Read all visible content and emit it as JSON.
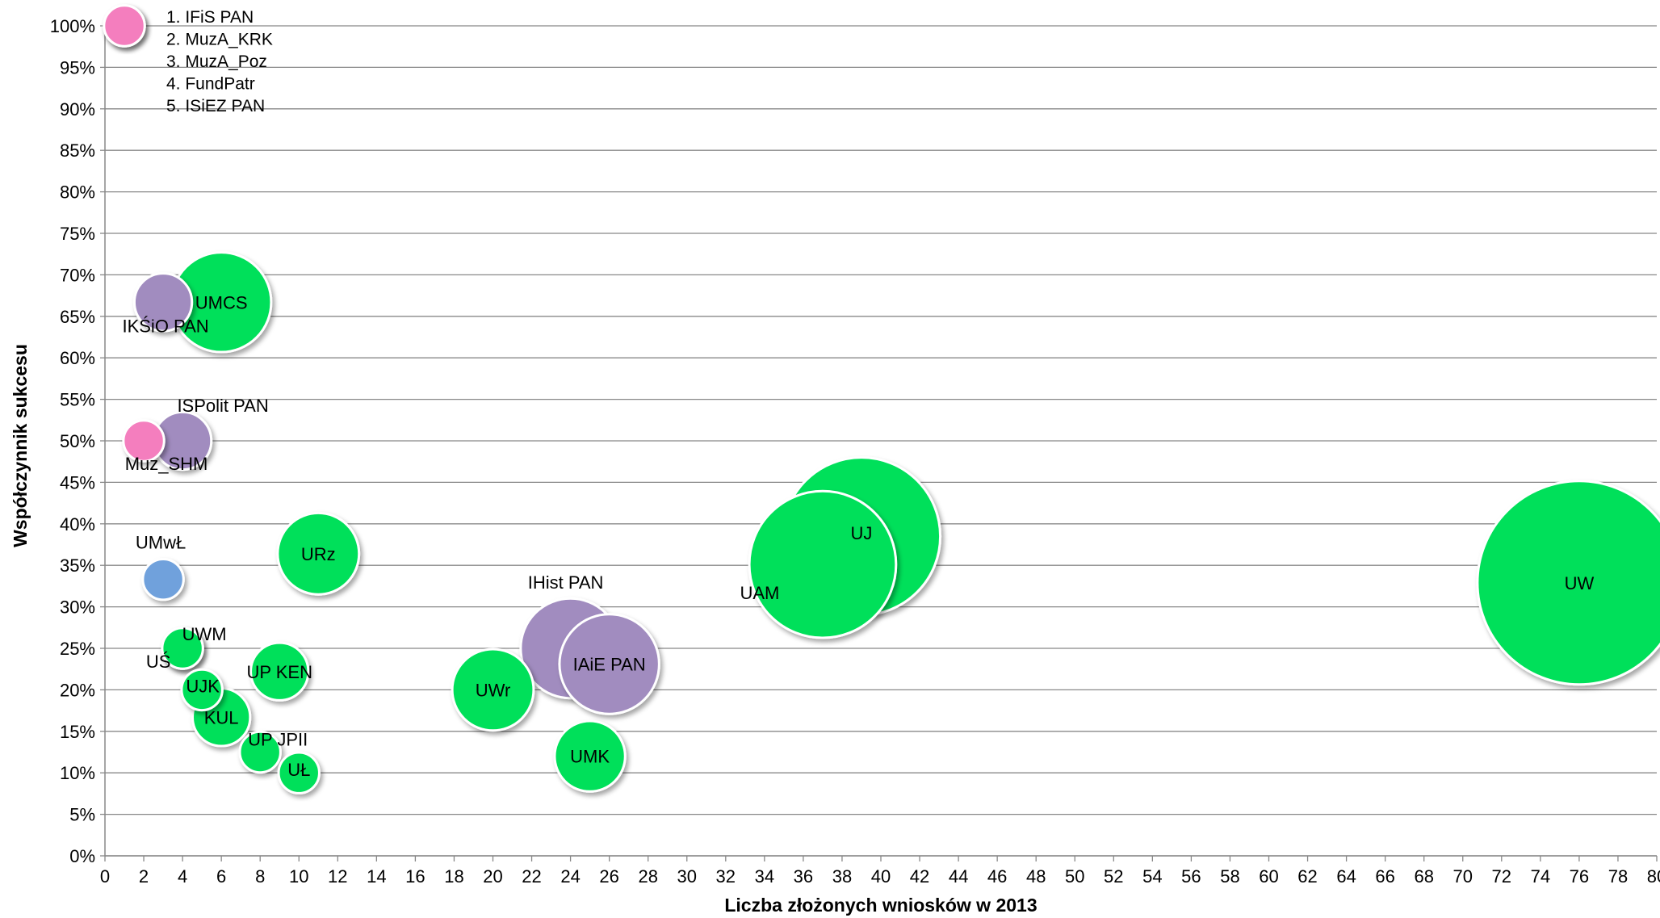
{
  "chart_data": {
    "type": "bubble",
    "xlabel": "Liczba złożonych wniosków w 2013",
    "ylabel": "Współczynnik sukcesu",
    "xlim": [
      0,
      80
    ],
    "ylim": [
      0,
      1
    ],
    "x_ticks": [
      0,
      2,
      4,
      6,
      8,
      10,
      12,
      14,
      16,
      18,
      20,
      22,
      24,
      26,
      28,
      30,
      32,
      34,
      36,
      38,
      40,
      42,
      44,
      46,
      48,
      50,
      52,
      54,
      56,
      58,
      60,
      62,
      64,
      66,
      68,
      70,
      72,
      74,
      76,
      78,
      80
    ],
    "y_ticks": [
      "0%",
      "5%",
      "10%",
      "15%",
      "20%",
      "25%",
      "30%",
      "35%",
      "40%",
      "45%",
      "50%",
      "55%",
      "60%",
      "65%",
      "70%",
      "75%",
      "80%",
      "85%",
      "90%",
      "95%",
      "100%"
    ],
    "grid": "horizontal",
    "colors": {
      "green": "#00E05A",
      "purple": "#A18CBF",
      "pink": "#F47EBE",
      "blue": "#6FA1DC",
      "gridline": "#888888"
    },
    "annotation": [
      "1. IFiS PAN",
      "2. MuzA_KRK",
      "3. MuzA_Poz",
      "4. FundPatr",
      "5. ISiEZ PAN"
    ],
    "points": [
      {
        "label": "",
        "x": 1,
        "y": 1.0,
        "size": 1,
        "color": "purple"
      },
      {
        "label": "",
        "x": 1,
        "y": 1.0,
        "size": 1,
        "color": "pink"
      },
      {
        "label": "UMCS",
        "x": 6,
        "y": 0.667,
        "size": 6,
        "color": "green"
      },
      {
        "label": "IKŚiO PAN",
        "x": 3,
        "y": 0.667,
        "size": 2,
        "color": "purple"
      },
      {
        "label": "ISPolit PAN",
        "x": 4,
        "y": 0.5,
        "size": 2,
        "color": "purple"
      },
      {
        "label": "Muz_SHM",
        "x": 2,
        "y": 0.5,
        "size": 1,
        "color": "pink"
      },
      {
        "label": "UMwŁ",
        "x": 3,
        "y": 0.333,
        "size": 1,
        "color": "blue"
      },
      {
        "label": "URz",
        "x": 11,
        "y": 0.364,
        "size": 4,
        "color": "green"
      },
      {
        "label": "UWM",
        "x": 4,
        "y": 0.25,
        "size": 1,
        "color": "green"
      },
      {
        "label": "UŚ",
        "x": 4,
        "y": 0.25,
        "size": 1,
        "color": "green"
      },
      {
        "label": "UP KEN",
        "x": 9,
        "y": 0.222,
        "size": 2,
        "color": "green"
      },
      {
        "label": "UJK",
        "x": 5,
        "y": 0.2,
        "size": 1,
        "color": "green"
      },
      {
        "label": "KUL",
        "x": 6,
        "y": 0.167,
        "size": 2,
        "color": "green"
      },
      {
        "label": "UP JPII",
        "x": 8,
        "y": 0.125,
        "size": 1,
        "color": "green"
      },
      {
        "label": "UŁ",
        "x": 10,
        "y": 0.1,
        "size": 1,
        "color": "green"
      },
      {
        "label": "IHist PAN",
        "x": 24,
        "y": 0.25,
        "size": 6,
        "color": "purple"
      },
      {
        "label": "UWr",
        "x": 20,
        "y": 0.2,
        "size": 4,
        "color": "green"
      },
      {
        "label": "IAiE PAN",
        "x": 26,
        "y": 0.231,
        "size": 6,
        "color": "purple"
      },
      {
        "label": "UMK",
        "x": 25,
        "y": 0.12,
        "size": 3,
        "color": "green"
      },
      {
        "label": "UAM",
        "x": 37,
        "y": 0.351,
        "size": 13,
        "color": "green"
      },
      {
        "label": "UJ",
        "x": 39,
        "y": 0.385,
        "size": 15,
        "color": "green"
      },
      {
        "label": "UW",
        "x": 76,
        "y": 0.329,
        "size": 25,
        "color": "green"
      }
    ]
  }
}
